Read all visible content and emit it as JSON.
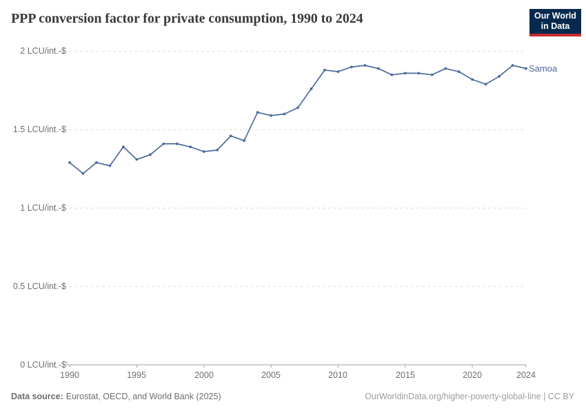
{
  "header": {
    "title": "PPP conversion factor for private consumption, 1990 to 2024",
    "logo_line1": "Our World",
    "logo_line2": "in Data"
  },
  "series_label": "Samoa",
  "footer": {
    "source_label": "Data source:",
    "source_text": "Eurostat, OECD, and World Bank (2025)",
    "link": "OurWorldinData.org/higher-poverty-global-line | CC BY"
  },
  "colors": {
    "line": "#4C6A9C",
    "grid": "#dedede",
    "axis": "#a1a1a1",
    "title": "#3a3a3a",
    "tick_text": "#6d6d6d",
    "logo_bg": "#062A4E",
    "logo_red": "#C62B31"
  },
  "chart_data": {
    "type": "line",
    "title": "PPP conversion factor for private consumption, 1990 to 2024",
    "unit": "LCU/int.-$",
    "x": [
      1990,
      1991,
      1992,
      1993,
      1994,
      1995,
      1996,
      1997,
      1998,
      1999,
      2000,
      2001,
      2002,
      2003,
      2004,
      2005,
      2006,
      2007,
      2008,
      2009,
      2010,
      2011,
      2012,
      2013,
      2014,
      2015,
      2016,
      2017,
      2018,
      2019,
      2020,
      2021,
      2022,
      2023,
      2024
    ],
    "series": [
      {
        "name": "Samoa",
        "values": [
          1.29,
          1.22,
          1.29,
          1.27,
          1.39,
          1.31,
          1.34,
          1.41,
          1.41,
          1.39,
          1.36,
          1.37,
          1.46,
          1.43,
          1.61,
          1.59,
          1.6,
          1.64,
          1.76,
          1.88,
          1.87,
          1.9,
          1.91,
          1.89,
          1.85,
          1.86,
          1.86,
          1.85,
          1.89,
          1.87,
          1.82,
          1.79,
          1.84,
          1.91,
          1.89
        ]
      }
    ],
    "ylim": [
      0,
      2
    ],
    "xlim": [
      1990,
      2024
    ],
    "yticks": [
      {
        "value": 2,
        "label": "2 LCU/int.-$"
      },
      {
        "value": 1.5,
        "label": "1.5 LCU/int.-$"
      },
      {
        "value": 1,
        "label": "1 LCU/int.-$"
      },
      {
        "value": 0.5,
        "label": "0.5 LCU/int.-$"
      },
      {
        "value": 0,
        "label": "0 LCU/int.-$"
      }
    ],
    "xticks": [
      1990,
      1995,
      2000,
      2005,
      2010,
      2015,
      2020,
      2024
    ],
    "grid": "horizontal-dashed",
    "legend_position": "end-of-line-label"
  }
}
